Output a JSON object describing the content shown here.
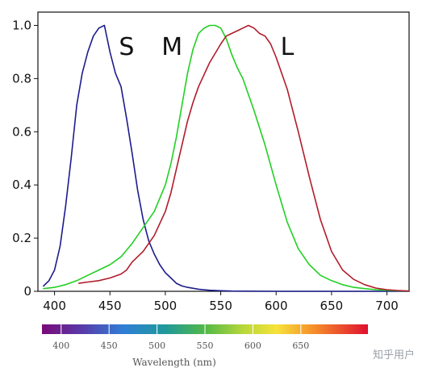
{
  "chart_data": {
    "type": "line",
    "xlim": [
      385,
      720
    ],
    "ylim": [
      0,
      1.05
    ],
    "x_ticks": [
      400,
      450,
      500,
      550,
      600,
      650,
      700
    ],
    "y_ticks": [
      0,
      0.2,
      0.4,
      0.6,
      0.8,
      1.0
    ],
    "x_tick_labels": [
      "400",
      "450",
      "500",
      "550",
      "600",
      "650",
      "700"
    ],
    "y_tick_labels": [
      "0",
      "0.2",
      "0.4",
      "0.6",
      "0.8",
      "1.0"
    ],
    "grid": false,
    "series": [
      {
        "name": "S",
        "color": "#1c1c8c",
        "x": [
          390,
          395,
          400,
          405,
          410,
          415,
          420,
          425,
          430,
          435,
          440,
          445,
          450,
          455,
          460,
          465,
          470,
          475,
          480,
          485,
          490,
          495,
          500,
          505,
          510,
          515,
          520,
          530,
          540,
          550,
          560,
          600,
          650,
          700,
          720
        ],
        "y": [
          0.02,
          0.04,
          0.08,
          0.17,
          0.32,
          0.5,
          0.7,
          0.82,
          0.9,
          0.96,
          0.99,
          1.0,
          0.9,
          0.82,
          0.77,
          0.65,
          0.52,
          0.38,
          0.27,
          0.19,
          0.14,
          0.1,
          0.07,
          0.05,
          0.03,
          0.02,
          0.015,
          0.008,
          0.004,
          0.002,
          0.001,
          0.0,
          0.0,
          0.0,
          0.0
        ]
      },
      {
        "name": "M",
        "color": "#22d022",
        "x": [
          390,
          400,
          410,
          420,
          430,
          440,
          450,
          460,
          470,
          480,
          490,
          500,
          505,
          510,
          515,
          520,
          525,
          530,
          535,
          540,
          545,
          550,
          555,
          560,
          565,
          570,
          580,
          590,
          600,
          610,
          620,
          630,
          640,
          650,
          660,
          670,
          680,
          690,
          700,
          710,
          720
        ],
        "y": [
          0.01,
          0.015,
          0.025,
          0.04,
          0.06,
          0.08,
          0.1,
          0.13,
          0.18,
          0.24,
          0.3,
          0.4,
          0.48,
          0.58,
          0.7,
          0.82,
          0.91,
          0.97,
          0.99,
          1.0,
          1.0,
          0.99,
          0.95,
          0.89,
          0.84,
          0.8,
          0.68,
          0.55,
          0.4,
          0.26,
          0.16,
          0.1,
          0.06,
          0.04,
          0.025,
          0.015,
          0.01,
          0.006,
          0.004,
          0.002,
          0.001
        ]
      },
      {
        "name": "L",
        "color": "#b01c2a",
        "x": [
          422,
          430,
          440,
          450,
          460,
          465,
          470,
          480,
          490,
          500,
          505,
          510,
          515,
          520,
          525,
          530,
          540,
          550,
          555,
          560,
          565,
          570,
          575,
          580,
          585,
          590,
          595,
          600,
          610,
          620,
          630,
          640,
          650,
          660,
          670,
          680,
          690,
          700,
          710,
          720
        ],
        "y": [
          0.03,
          0.035,
          0.04,
          0.05,
          0.065,
          0.08,
          0.11,
          0.15,
          0.21,
          0.3,
          0.37,
          0.46,
          0.55,
          0.64,
          0.71,
          0.77,
          0.86,
          0.93,
          0.96,
          0.97,
          0.98,
          0.99,
          1.0,
          0.99,
          0.97,
          0.96,
          0.93,
          0.88,
          0.76,
          0.6,
          0.43,
          0.27,
          0.15,
          0.08,
          0.045,
          0.025,
          0.012,
          0.006,
          0.003,
          0.001
        ]
      }
    ],
    "annotations": [
      {
        "text": "S",
        "x": 465,
        "y": 0.92
      },
      {
        "text": "M",
        "x": 506,
        "y": 0.92
      },
      {
        "text": "L",
        "x": 610,
        "y": 0.92
      }
    ],
    "spectrum_bar": {
      "labels": [
        "400",
        "450",
        "500",
        "550",
        "600",
        "650"
      ],
      "xlabel": "Wavelength (nm)"
    }
  },
  "watermark": "知乎用户"
}
